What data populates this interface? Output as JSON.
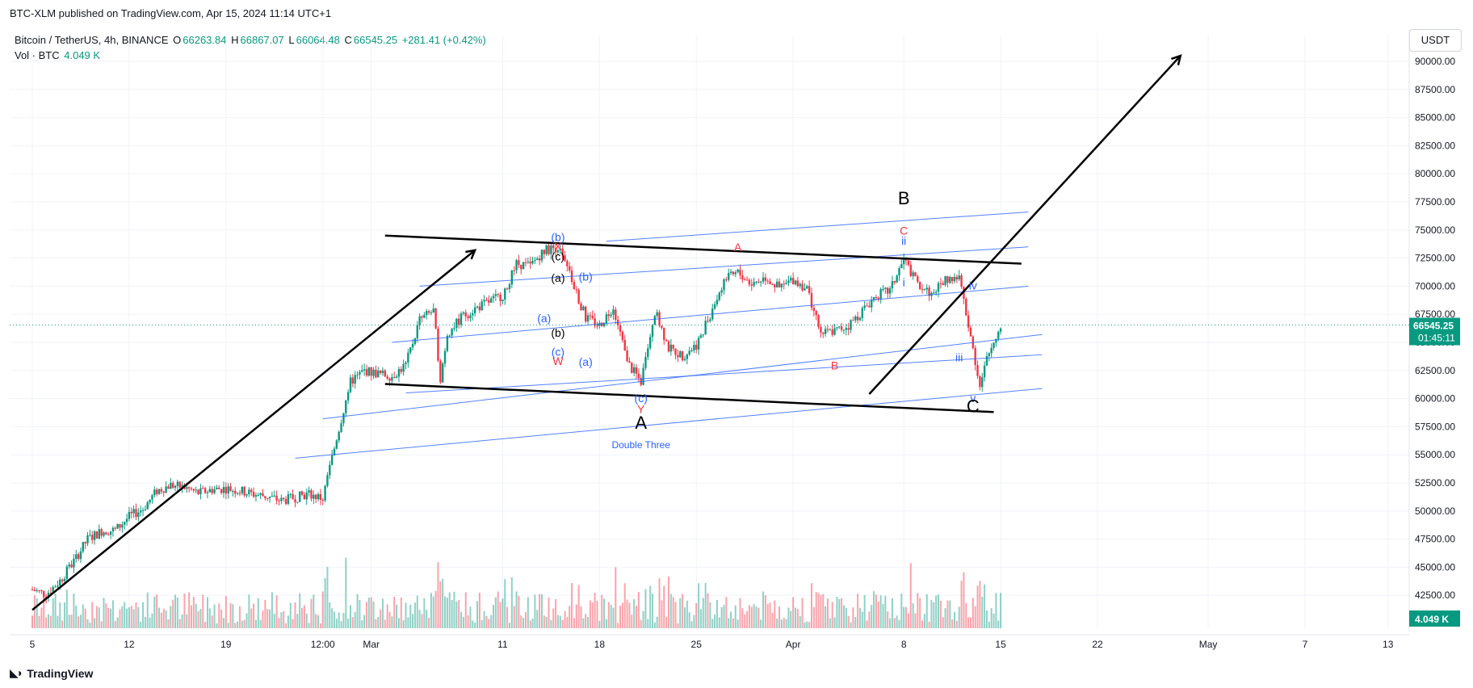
{
  "header": {
    "published": "BTC-XLM published on TradingView.com, Apr 15, 2024 11:14 UTC+1",
    "symbol": "Bitcoin / TetherUS, 4h, BINANCE",
    "open_label": "O",
    "open": "66263.84",
    "high_label": "H",
    "high": "66867.07",
    "low_label": "L",
    "low": "66064.48",
    "close_label": "C",
    "close": "66545.25",
    "change": "+281.41 (+0.42%)",
    "volume_label": "Vol · BTC",
    "volume": "4.049 K"
  },
  "currency": "USDT",
  "brand": {
    "name": "TradingView",
    "logo_icon": "tradingview-logo-icon"
  },
  "colors": {
    "up": "#089981",
    "down": "#f23645",
    "wave_blue": "#2962ff",
    "wave_red": "#f23645",
    "trend": "#000000",
    "price_tag": "#089981"
  },
  "chart_data": {
    "type": "candlestick",
    "ylim": [
      40000,
      92500
    ],
    "y_ticks": [
      "90000.00",
      "87500.00",
      "85000.00",
      "82500.00",
      "80000.00",
      "77500.00",
      "75000.00",
      "72500.00",
      "70000.00",
      "67500.00",
      "65000.00",
      "62500.00",
      "60000.00",
      "57500.00",
      "55000.00",
      "52500.00",
      "50000.00",
      "47500.00",
      "45000.00",
      "42500.00"
    ],
    "x_ticks": [
      "5",
      "12",
      "19",
      "12:00",
      "Mar",
      "11",
      "18",
      "25",
      "Apr",
      "8",
      "15",
      "22",
      "May",
      "7",
      "13"
    ],
    "last_price": "66545.25",
    "countdown": "01:45:11",
    "volume_tag": "4.049 K",
    "price_path": [
      [
        "Feb 5",
        43000
      ],
      [
        "Feb 6",
        42600
      ],
      [
        "Feb 7",
        43800
      ],
      [
        "Feb 8",
        45500
      ],
      [
        "Feb 9",
        47500
      ],
      [
        "Feb 10",
        48200
      ],
      [
        "Feb 11",
        48300
      ],
      [
        "Feb 12",
        49500
      ],
      [
        "Feb 13",
        50200
      ],
      [
        "Feb 14",
        51800
      ],
      [
        "Feb 15",
        52300
      ],
      [
        "Feb 16",
        52100
      ],
      [
        "Feb 17",
        51600
      ],
      [
        "Feb 18",
        51900
      ],
      [
        "Feb 19",
        52000
      ],
      [
        "Feb 20",
        51800
      ],
      [
        "Feb 21",
        51500
      ],
      [
        "Feb 22",
        51300
      ],
      [
        "Feb 23",
        50900
      ],
      [
        "Feb 24",
        51200
      ],
      [
        "Feb 25",
        51500
      ],
      [
        "Feb 26",
        51100
      ],
      [
        "Feb 27",
        56500
      ],
      [
        "Feb 28",
        61500
      ],
      [
        "Feb 29",
        62500
      ],
      [
        "Mar 1",
        62200
      ],
      [
        "Mar 2",
        62000
      ],
      [
        "Mar 3",
        63000
      ],
      [
        "Mar 4",
        67000
      ],
      [
        "Mar 5",
        67800
      ],
      [
        "Mar 5b",
        61800
      ],
      [
        "Mar 6",
        65800
      ],
      [
        "Mar 7",
        67200
      ],
      [
        "Mar 8",
        68000
      ],
      [
        "Mar 9",
        68600
      ],
      [
        "Mar 10",
        69200
      ],
      [
        "Mar 11",
        72000
      ],
      [
        "Mar 12",
        71800
      ],
      [
        "Mar 13",
        73200
      ],
      [
        "Mar 14",
        73500
      ],
      [
        "Mar 15",
        70500
      ],
      [
        "Mar 16",
        67200
      ],
      [
        "Mar 17",
        66500
      ],
      [
        "Mar 18",
        68200
      ],
      [
        "Mar 19",
        63200
      ],
      [
        "Mar 20",
        61500
      ],
      [
        "Mar 21",
        67800
      ],
      [
        "Mar 22",
        64500
      ],
      [
        "Mar 23",
        63800
      ],
      [
        "Mar 24",
        64800
      ],
      [
        "Mar 25",
        67500
      ],
      [
        "Mar 26",
        70500
      ],
      [
        "Mar 27",
        71200
      ],
      [
        "Mar 28",
        70200
      ],
      [
        "Mar 29",
        70800
      ],
      [
        "Mar 30",
        69800
      ],
      [
        "Mar 31",
        70600
      ],
      [
        "Apr 1",
        69800
      ],
      [
        "Apr 2",
        65800
      ],
      [
        "Apr 3",
        66000
      ],
      [
        "Apr 4",
        66500
      ],
      [
        "Apr 5",
        67800
      ],
      [
        "Apr 6",
        69200
      ],
      [
        "Apr 7",
        69600
      ],
      [
        "Apr 8",
        72400
      ],
      [
        "Apr 9",
        70200
      ],
      [
        "Apr 10",
        69300
      ],
      [
        "Apr 11",
        70600
      ],
      [
        "Apr 12",
        70800
      ],
      [
        "Apr 13",
        64500
      ],
      [
        "Apr 13b",
        61000
      ],
      [
        "Apr 14",
        63500
      ],
      [
        "Apr 15",
        66545
      ]
    ],
    "wave_labels": [
      {
        "text": "(b)",
        "color": "blue",
        "x": "Mar 14",
        "y": 74000
      },
      {
        "text": "X",
        "color": "red",
        "x": "Mar 14",
        "y": 73200
      },
      {
        "text": "(c)",
        "color": "black",
        "x": "Mar 14",
        "y": 72300
      },
      {
        "text": "(a)",
        "color": "black",
        "x": "Mar 14",
        "y": 70400
      },
      {
        "text": "(b)",
        "color": "blue",
        "x": "Mar 16",
        "y": 70500
      },
      {
        "text": "(a)",
        "color": "blue",
        "x": "Mar 13",
        "y": 66800
      },
      {
        "text": "(b)",
        "color": "black",
        "x": "Mar 14",
        "y": 65500
      },
      {
        "text": "(c)",
        "color": "blue",
        "x": "Mar 14",
        "y": 63800
      },
      {
        "text": "W",
        "color": "red",
        "x": "Mar 14",
        "y": 63000
      },
      {
        "text": "(a)",
        "color": "blue",
        "x": "Mar 16",
        "y": 62900
      },
      {
        "text": "(c)",
        "color": "blue",
        "x": "Mar 20",
        "y": 59700
      },
      {
        "text": "Y",
        "color": "red",
        "x": "Mar 20",
        "y": 58700
      },
      {
        "text": "A",
        "color": "black",
        "x": "Mar 20",
        "y": 57300
      },
      {
        "text": "Double Three",
        "color": "blue",
        "x": "Mar 20",
        "y": 55600
      },
      {
        "text": "A",
        "color": "red",
        "x": "Mar 27",
        "y": 73100
      },
      {
        "text": "B",
        "color": "red",
        "x": "Apr 3",
        "y": 62600
      },
      {
        "text": "B",
        "color": "black",
        "x": "Apr 8",
        "y": 77300
      },
      {
        "text": "C",
        "color": "red",
        "x": "Apr 8",
        "y": 74600
      },
      {
        "text": "ii",
        "color": "blue",
        "x": "Apr 8",
        "y": 73700
      },
      {
        "text": "i",
        "color": "blue",
        "x": "Apr 8",
        "y": 70000
      },
      {
        "text": "iv",
        "color": "blue",
        "x": "Apr 13",
        "y": 69700
      },
      {
        "text": "iii",
        "color": "blue",
        "x": "Apr 12",
        "y": 63300
      },
      {
        "text": "v",
        "color": "blue",
        "x": "Apr 13",
        "y": 59700
      },
      {
        "text": "C",
        "color": "black",
        "x": "Apr 13",
        "y": 58800
      }
    ]
  }
}
